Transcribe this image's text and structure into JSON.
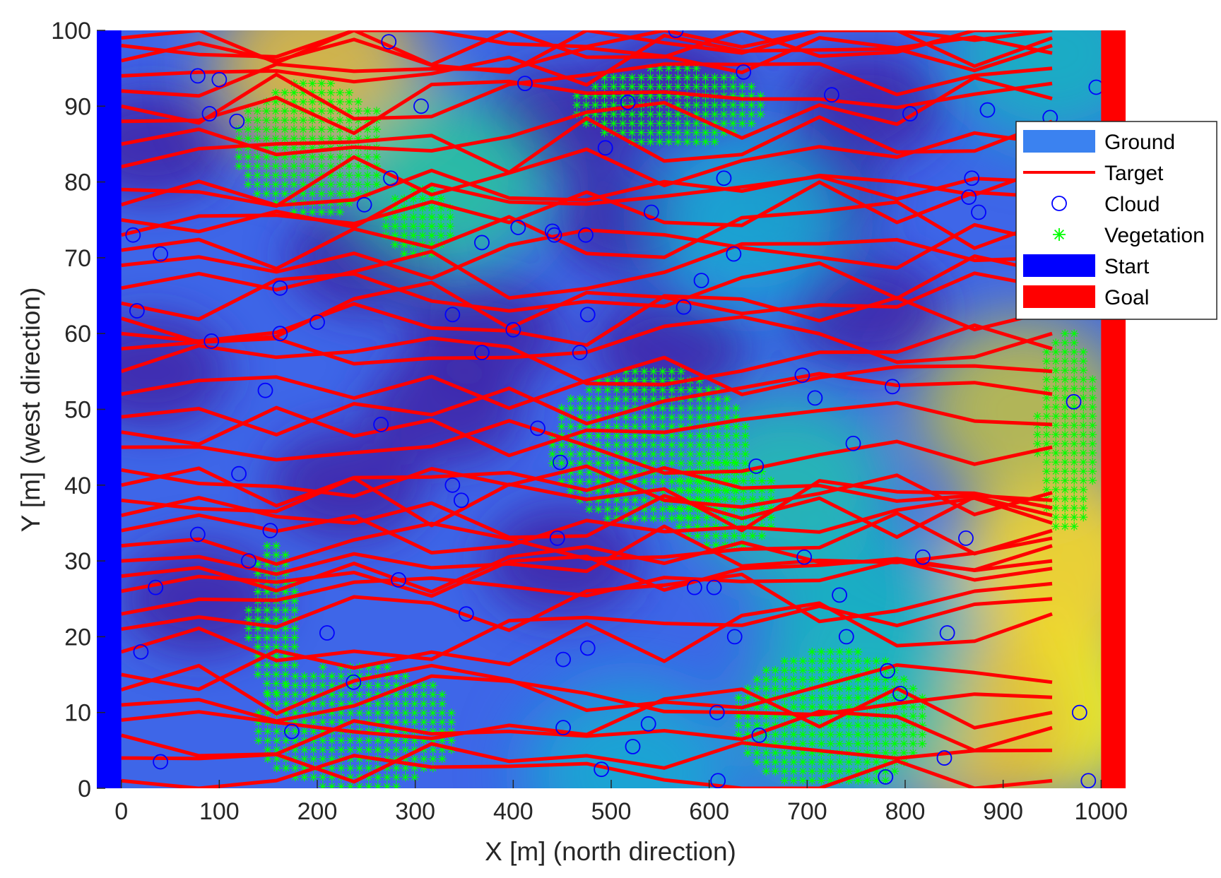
{
  "chart_data": {
    "type": "scatter",
    "title": "",
    "xlabel": "X [m] (north direction)",
    "ylabel": "Y [m] (west direction)",
    "xlim": [
      -25,
      1025
    ],
    "ylim": [
      0,
      100
    ],
    "x_tick_labels": [
      "0",
      "100",
      "200",
      "300",
      "400",
      "500",
      "600",
      "700",
      "800",
      "900",
      "1000"
    ],
    "x_tick_values": [
      0,
      100,
      200,
      300,
      400,
      500,
      600,
      700,
      800,
      900,
      1000
    ],
    "y_tick_labels": [
      "0",
      "10",
      "20",
      "30",
      "40",
      "50",
      "60",
      "70",
      "80",
      "90",
      "100"
    ],
    "y_tick_values": [
      0,
      10,
      20,
      30,
      40,
      50,
      60,
      70,
      80,
      90,
      100
    ],
    "grid": false,
    "legend_position": "top-right",
    "ground": {
      "colormap": "parula",
      "low_color": "#3e26a8",
      "high_color": "#f9fb0e",
      "hotspots": [
        {
          "x": 200,
          "y": 95,
          "level": 0.85
        },
        {
          "x": 330,
          "y": 80,
          "level": 0.6
        },
        {
          "x": 950,
          "y": 10,
          "level": 1.0
        },
        {
          "x": 960,
          "y": 30,
          "level": 0.95
        },
        {
          "x": 920,
          "y": 50,
          "level": 0.8
        },
        {
          "x": 870,
          "y": 8,
          "level": 0.85
        },
        {
          "x": 750,
          "y": 10,
          "level": 0.55
        },
        {
          "x": 680,
          "y": 40,
          "level": 0.55
        },
        {
          "x": 760,
          "y": 22,
          "level": 0.5
        },
        {
          "x": 640,
          "y": 75,
          "level": 0.45
        },
        {
          "x": 950,
          "y": 97,
          "level": 0.5
        },
        {
          "x": 520,
          "y": 2,
          "level": 0.45
        }
      ]
    },
    "start": {
      "x_range": [
        -25,
        0
      ],
      "y_range": [
        0,
        100
      ],
      "color": "#0000ff"
    },
    "goal": {
      "x_range": [
        1000,
        1025
      ],
      "y_range": [
        0,
        100
      ],
      "color": "#ff0000"
    },
    "vegetation": [
      {
        "x_range": [
          120,
          270
        ],
        "y_range": [
          76,
          93
        ]
      },
      {
        "x_range": [
          270,
          340
        ],
        "y_range": [
          70,
          79
        ]
      },
      {
        "x_range": [
          465,
          655
        ],
        "y_range": [
          85,
          95
        ]
      },
      {
        "x_range": [
          440,
          640
        ],
        "y_range": [
          35,
          55
        ]
      },
      {
        "x_range": [
          560,
          670
        ],
        "y_range": [
          32,
          43
        ]
      },
      {
        "x_range": [
          130,
          180
        ],
        "y_range": [
          12,
          32
        ]
      },
      {
        "x_range": [
          140,
          340
        ],
        "y_range": [
          0,
          16
        ]
      },
      {
        "x_range": [
          630,
          820
        ],
        "y_range": [
          0,
          18
        ]
      },
      {
        "x_range": [
          935,
          995
        ],
        "y_range": [
          34,
          60
        ]
      }
    ],
    "clouds": [
      {
        "x": 12,
        "y": 73
      },
      {
        "x": 40,
        "y": 70.5
      },
      {
        "x": 16,
        "y": 63
      },
      {
        "x": 20,
        "y": 18
      },
      {
        "x": 35,
        "y": 26.5
      },
      {
        "x": 40,
        "y": 3.5
      },
      {
        "x": 78,
        "y": 94
      },
      {
        "x": 90,
        "y": 89
      },
      {
        "x": 100,
        "y": 93.5
      },
      {
        "x": 92,
        "y": 59
      },
      {
        "x": 78,
        "y": 33.5
      },
      {
        "x": 118,
        "y": 88
      },
      {
        "x": 130,
        "y": 30
      },
      {
        "x": 120,
        "y": 41.5
      },
      {
        "x": 152,
        "y": 34
      },
      {
        "x": 147,
        "y": 52.5
      },
      {
        "x": 162,
        "y": 66
      },
      {
        "x": 162,
        "y": 60
      },
      {
        "x": 174,
        "y": 7.5
      },
      {
        "x": 200,
        "y": 61.5
      },
      {
        "x": 210,
        "y": 20.5
      },
      {
        "x": 237,
        "y": 14
      },
      {
        "x": 248,
        "y": 77
      },
      {
        "x": 265,
        "y": 48
      },
      {
        "x": 275,
        "y": 80.5
      },
      {
        "x": 273,
        "y": 98.5
      },
      {
        "x": 283,
        "y": 27.5
      },
      {
        "x": 306,
        "y": 90
      },
      {
        "x": 338,
        "y": 62.5
      },
      {
        "x": 338,
        "y": 40
      },
      {
        "x": 347,
        "y": 38
      },
      {
        "x": 352,
        "y": 23
      },
      {
        "x": 368,
        "y": 72
      },
      {
        "x": 368,
        "y": 57.5
      },
      {
        "x": 400,
        "y": 60.5
      },
      {
        "x": 405,
        "y": 74
      },
      {
        "x": 412,
        "y": 93
      },
      {
        "x": 425,
        "y": 47.5
      },
      {
        "x": 440,
        "y": 73.5
      },
      {
        "x": 442,
        "y": 73
      },
      {
        "x": 445,
        "y": 33
      },
      {
        "x": 448,
        "y": 43
      },
      {
        "x": 451,
        "y": 17
      },
      {
        "x": 451,
        "y": 8
      },
      {
        "x": 468,
        "y": 57.5
      },
      {
        "x": 474,
        "y": 73
      },
      {
        "x": 476,
        "y": 62.5
      },
      {
        "x": 476,
        "y": 18.5
      },
      {
        "x": 490,
        "y": 2.5
      },
      {
        "x": 494,
        "y": 84.5
      },
      {
        "x": 517,
        "y": 90.5
      },
      {
        "x": 522,
        "y": 5.5
      },
      {
        "x": 538,
        "y": 8.5
      },
      {
        "x": 541,
        "y": 76
      },
      {
        "x": 566,
        "y": 100
      },
      {
        "x": 574,
        "y": 63.5
      },
      {
        "x": 585,
        "y": 26.5
      },
      {
        "x": 592,
        "y": 67
      },
      {
        "x": 605,
        "y": 26.5
      },
      {
        "x": 608,
        "y": 10
      },
      {
        "x": 609,
        "y": 1
      },
      {
        "x": 615,
        "y": 80.5
      },
      {
        "x": 625,
        "y": 70.5
      },
      {
        "x": 626,
        "y": 20
      },
      {
        "x": 635,
        "y": 94.5
      },
      {
        "x": 648,
        "y": 42.5
      },
      {
        "x": 651,
        "y": 7
      },
      {
        "x": 695,
        "y": 54.5
      },
      {
        "x": 697,
        "y": 30.5
      },
      {
        "x": 708,
        "y": 51.5
      },
      {
        "x": 725,
        "y": 91.5
      },
      {
        "x": 733,
        "y": 25.5
      },
      {
        "x": 740,
        "y": 20
      },
      {
        "x": 747,
        "y": 45.5
      },
      {
        "x": 780,
        "y": 1.5
      },
      {
        "x": 782,
        "y": 15.5
      },
      {
        "x": 787,
        "y": 53
      },
      {
        "x": 795,
        "y": 12.5
      },
      {
        "x": 805,
        "y": 89
      },
      {
        "x": 818,
        "y": 30.5
      },
      {
        "x": 840,
        "y": 4
      },
      {
        "x": 843,
        "y": 20.5
      },
      {
        "x": 862,
        "y": 33
      },
      {
        "x": 865,
        "y": 78
      },
      {
        "x": 868,
        "y": 80.5
      },
      {
        "x": 875,
        "y": 76
      },
      {
        "x": 884,
        "y": 89.5
      },
      {
        "x": 948,
        "y": 88.5
      },
      {
        "x": 972,
        "y": 51
      },
      {
        "x": 978,
        "y": 10
      },
      {
        "x": 987,
        "y": 1
      },
      {
        "x": 995,
        "y": 92.5
      }
    ],
    "targets": {
      "x_start": 0,
      "x_end": 950,
      "start_y": [
        1,
        4,
        7,
        9,
        11,
        13,
        15,
        18,
        21,
        23,
        26,
        28,
        30,
        32,
        34,
        36,
        38,
        40,
        42,
        45,
        47,
        49,
        52,
        55,
        58,
        60,
        62,
        64,
        66,
        69,
        71,
        73,
        75,
        77,
        79,
        82,
        85,
        88,
        90,
        92,
        94,
        96,
        98,
        99
      ],
      "end_y": [
        1,
        5,
        8,
        10,
        12,
        14,
        23,
        25,
        27,
        29,
        30,
        32,
        33,
        34,
        35,
        36,
        37,
        38,
        39,
        45,
        48,
        52,
        55,
        58,
        60,
        63,
        66,
        68,
        70,
        72,
        75,
        78,
        80,
        82,
        85,
        88,
        91,
        93,
        95,
        97,
        98,
        99,
        100,
        100
      ]
    },
    "legend": [
      {
        "label": "Ground",
        "symbol": "patch",
        "color": "#3b82f0"
      },
      {
        "label": "Target",
        "symbol": "line",
        "color": "#ff0000"
      },
      {
        "label": "Cloud",
        "symbol": "circle",
        "color": "#0000ff"
      },
      {
        "label": "Vegetation",
        "symbol": "star",
        "color": "#00ff00"
      },
      {
        "label": "Start",
        "symbol": "patch",
        "color": "#0000ff"
      },
      {
        "label": "Goal",
        "symbol": "patch",
        "color": "#ff0000"
      }
    ]
  }
}
